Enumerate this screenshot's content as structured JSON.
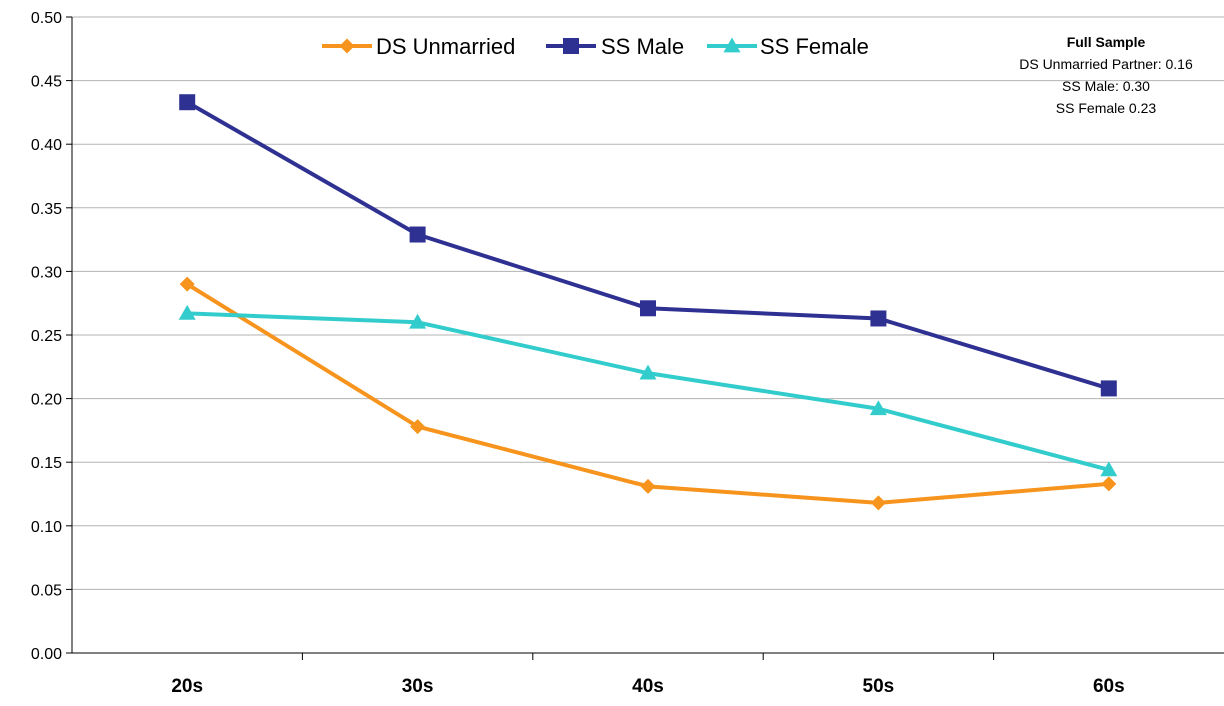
{
  "chart_data": {
    "type": "line",
    "categories": [
      "20s",
      "30s",
      "40s",
      "50s",
      "60s"
    ],
    "series": [
      {
        "name": "DS Unmarried",
        "color": "#F7941D",
        "marker": "diamond",
        "values": [
          0.29,
          0.178,
          0.131,
          0.118,
          0.133
        ]
      },
      {
        "name": "SS Male",
        "color": "#2E3192",
        "marker": "square",
        "values": [
          0.433,
          0.329,
          0.271,
          0.263,
          0.208
        ]
      },
      {
        "name": "SS Female",
        "color": "#33CCCC",
        "marker": "triangle",
        "values": [
          0.267,
          0.26,
          0.22,
          0.192,
          0.144
        ]
      }
    ],
    "ylim": [
      0,
      0.5
    ],
    "ytick_step": 0.05,
    "ytick_labels": [
      "0.00",
      "0.05",
      "0.10",
      "0.15",
      "0.20",
      "0.25",
      "0.30",
      "0.35",
      "0.40",
      "0.45",
      "0.50"
    ],
    "grid": true,
    "legend": "top-center",
    "annotation": {
      "title": "Full Sample",
      "lines": [
        "DS Unmarried Partner: 0.16",
        "SS Male: 0.30",
        "SS Female 0.23"
      ]
    }
  }
}
